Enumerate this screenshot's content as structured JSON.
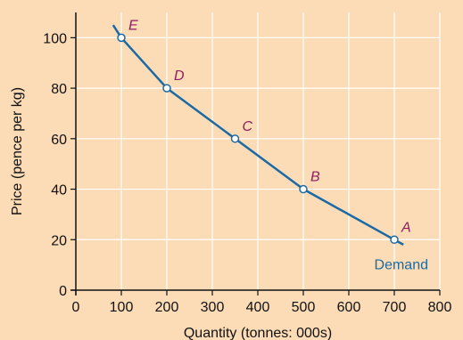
{
  "chart_data": {
    "type": "line",
    "xlabel": "Quantity (tonnes: 000s)",
    "ylabel": "Price (pence per kg)",
    "xlim": [
      0,
      800
    ],
    "ylim": [
      0,
      110
    ],
    "x_ticks": [
      0,
      100,
      200,
      300,
      400,
      500,
      600,
      700,
      800
    ],
    "y_ticks": [
      0,
      20,
      40,
      60,
      80,
      100
    ],
    "grid": true,
    "series": [
      {
        "name": "Demand",
        "color": "#1b6aa5",
        "line": [
          [
            82,
            105
          ],
          [
            100,
            100
          ],
          [
            200,
            80
          ],
          [
            350,
            60
          ],
          [
            500,
            40
          ],
          [
            700,
            20
          ],
          [
            720,
            18
          ]
        ],
        "points": [
          {
            "label": "A",
            "x": 700,
            "y": 20
          },
          {
            "label": "B",
            "x": 500,
            "y": 40
          },
          {
            "label": "C",
            "x": 350,
            "y": 60
          },
          {
            "label": "D",
            "x": 200,
            "y": 80
          },
          {
            "label": "E",
            "x": 100,
            "y": 100
          }
        ]
      }
    ],
    "colors": {
      "background": "#fbdcb6",
      "grid": "#ffffff",
      "axis": "#111111",
      "point_label": "#8e1d5e"
    }
  }
}
